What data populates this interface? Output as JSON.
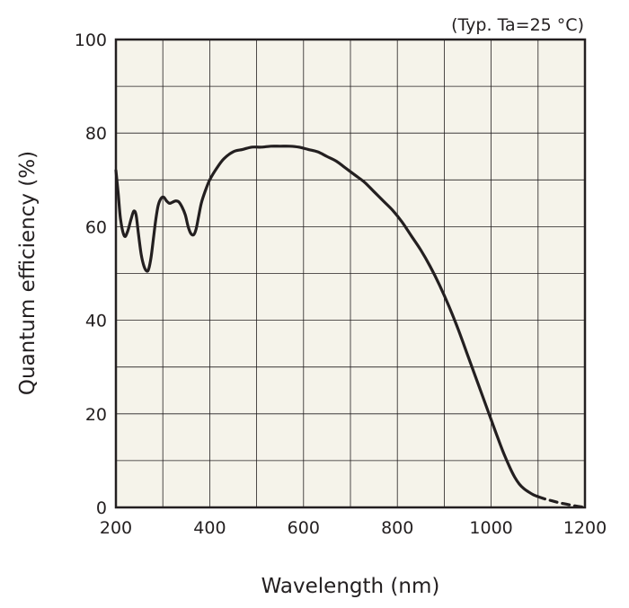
{
  "chart_data": {
    "type": "line",
    "annotation": "(Typ. Ta=25 °C)",
    "xlabel": "Wavelength (nm)",
    "ylabel": "Quantum efficiency (%)",
    "xlim": [
      200,
      1200
    ],
    "ylim": [
      0,
      100
    ],
    "x_ticks": [
      "200",
      "400",
      "600",
      "800",
      "1000",
      "1200"
    ],
    "y_ticks": [
      "0",
      "20",
      "40",
      "60",
      "80",
      "100"
    ],
    "grid": true,
    "plot_background": "#f5f3ea",
    "line_color": "#231f20",
    "series": [
      {
        "x": [
          200,
          205,
          210,
          218,
          225,
          232,
          238,
          243,
          248,
          254,
          260,
          266,
          270,
          275,
          280,
          285,
          290,
          296,
          302,
          308,
          314,
          320,
          327,
          334,
          341,
          348,
          354,
          360,
          366,
          371,
          376,
          382,
          390,
          400,
          415,
          430,
          450,
          470,
          490,
          510,
          530,
          550,
          570,
          590,
          610,
          630,
          650,
          670,
          690,
          710,
          730,
          750,
          770,
          790,
          810,
          830,
          850,
          870,
          890,
          910,
          930,
          950,
          970,
          990,
          1010,
          1025,
          1040,
          1050,
          1060,
          1070,
          1080,
          1090,
          1100
        ],
        "y": [
          72,
          67,
          61.5,
          58,
          59,
          61.5,
          63.3,
          62.5,
          58.5,
          54,
          51.5,
          50.5,
          51,
          53.5,
          57.5,
          61.5,
          64.5,
          66,
          66.3,
          65.5,
          65,
          65.2,
          65.5,
          65.3,
          64.2,
          62.5,
          60,
          58.5,
          58.3,
          59.5,
          62,
          65,
          67.5,
          70,
          72.5,
          74.5,
          76,
          76.5,
          77,
          77,
          77.2,
          77.2,
          77.2,
          77,
          76.5,
          76,
          75,
          74,
          72.5,
          71,
          69.5,
          67.5,
          65.5,
          63.5,
          61,
          58,
          55,
          51.5,
          47.5,
          43,
          38,
          32.5,
          27,
          21.5,
          16,
          12,
          8.5,
          6.5,
          5,
          4,
          3.3,
          2.7,
          2.3
        ],
        "style": "solid"
      },
      {
        "x": [
          1100,
          1115,
          1130,
          1145,
          1160,
          1175,
          1190,
          1200
        ],
        "y": [
          2.3,
          1.8,
          1.4,
          1.0,
          0.7,
          0.4,
          0.15,
          0.05
        ],
        "style": "dashed"
      }
    ]
  }
}
